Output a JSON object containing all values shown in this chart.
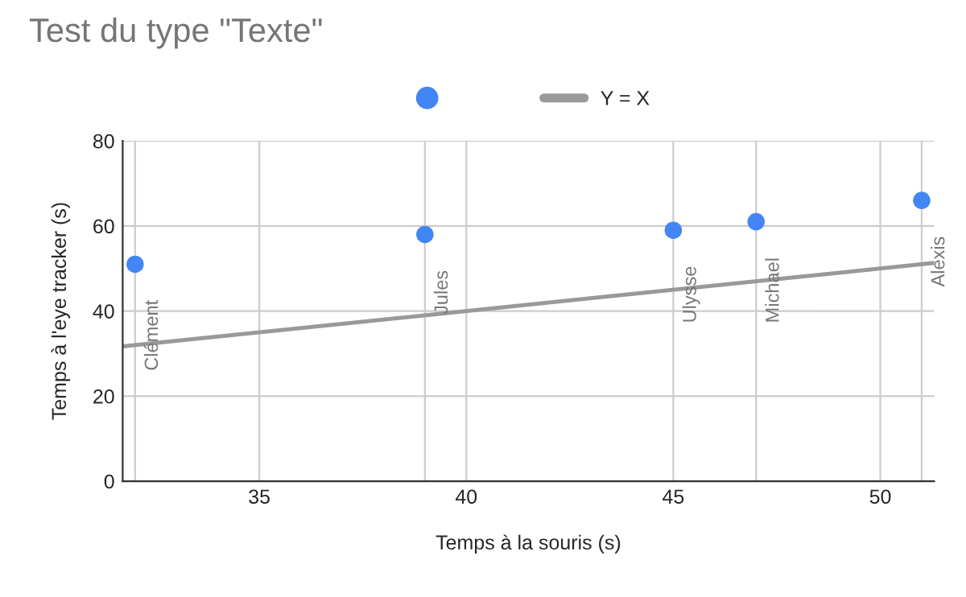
{
  "chart_data": {
    "type": "scatter",
    "title": "Test du type \"Texte\"",
    "xlabel": "Temps à la souris (s)",
    "ylabel": "Temps à l'eye tracker (s)",
    "series": [
      {
        "color": "#4285f4",
        "marker": "circle",
        "x": [
          32,
          39,
          45,
          47,
          51
        ],
        "values": [
          51,
          58,
          59,
          61,
          66
        ]
      },
      {
        "type": "line",
        "name": "Y = X",
        "color": "#999999",
        "x": [
          31.7,
          51.3
        ],
        "values": [
          31.7,
          51.3
        ]
      }
    ],
    "annotations": [
      {
        "text": "Clément",
        "x": 32,
        "y": 51
      },
      {
        "text": "Jules",
        "x": 39,
        "y": 58
      },
      {
        "text": "Ulysse",
        "x": 45,
        "y": 59
      },
      {
        "text": "Michael",
        "x": 47,
        "y": 61
      },
      {
        "text": "Alexis",
        "x": 51,
        "y": 66
      }
    ],
    "xlim": [
      31.7,
      51.3
    ],
    "ylim": [
      0,
      80
    ],
    "xticks": [
      {
        "value": 32,
        "label": null
      },
      35,
      {
        "value": 39,
        "label": null
      },
      40,
      45,
      {
        "value": 47,
        "label": null
      },
      50,
      {
        "value": 51,
        "label": null
      }
    ],
    "yticks": [
      0,
      20,
      40,
      60,
      80
    ],
    "grid": true,
    "legend": "top"
  }
}
